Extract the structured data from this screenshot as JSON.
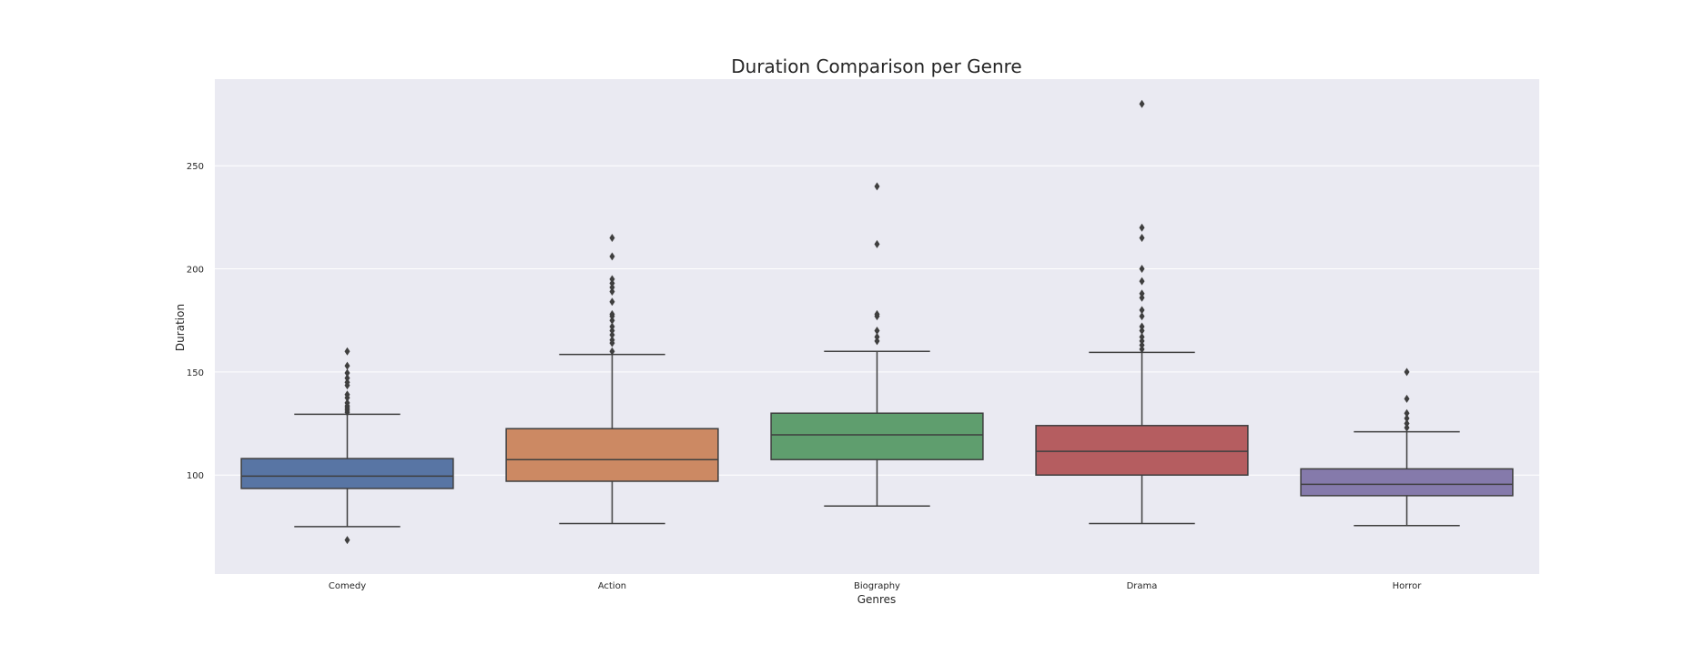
{
  "chart_data": {
    "type": "box",
    "title": "Duration Comparison per Genre",
    "xlabel": "Genres",
    "ylabel": "Duration",
    "ylim": [
      52,
      292
    ],
    "yticks": [
      100,
      150,
      200,
      250
    ],
    "grid": true,
    "categories": [
      "Comedy",
      "Action",
      "Biography",
      "Drama",
      "Horror"
    ],
    "colors": {
      "Comedy": "#5875a4",
      "Action": "#cc8963",
      "Biography": "#5f9e6e",
      "Drama": "#b55d60",
      "Horror": "#857aab"
    },
    "boxes": [
      {
        "category": "Comedy",
        "whisker_low": 75,
        "q1": 93.5,
        "median": 99.5,
        "q3": 108,
        "whisker_high": 129.5,
        "outliers": [
          68.5,
          130.5,
          131.5,
          132.5,
          133.5,
          135,
          137.5,
          139,
          143.5,
          145,
          147,
          149.5,
          153,
          160
        ]
      },
      {
        "category": "Action",
        "whisker_low": 76.5,
        "q1": 97,
        "median": 107.5,
        "q3": 122.5,
        "whisker_high": 158.5,
        "outliers": [
          160,
          164,
          165.5,
          168,
          170,
          172,
          175,
          177,
          178,
          184,
          189,
          191,
          193,
          195,
          206,
          215
        ]
      },
      {
        "category": "Biography",
        "whisker_low": 85,
        "q1": 107.5,
        "median": 119.5,
        "q3": 130,
        "whisker_high": 160,
        "outliers": [
          165,
          167,
          170,
          177,
          178,
          212,
          240
        ]
      },
      {
        "category": "Drama",
        "whisker_low": 76.5,
        "q1": 100,
        "median": 111.5,
        "q3": 124,
        "whisker_high": 159.5,
        "outliers": [
          161,
          163,
          165,
          167,
          170,
          172,
          177,
          180,
          186,
          188,
          194,
          200,
          215,
          220,
          280
        ]
      },
      {
        "category": "Horror",
        "whisker_low": 75.5,
        "q1": 90,
        "median": 95.5,
        "q3": 103,
        "whisker_high": 121,
        "outliers": [
          123,
          125,
          127.5,
          130,
          137,
          150
        ]
      }
    ]
  }
}
